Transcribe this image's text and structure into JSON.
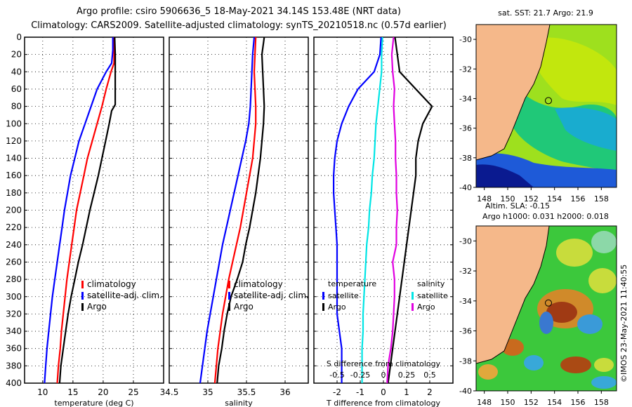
{
  "titles": {
    "line1": "Argo profile: csiro 5906636_5 18-May-2021 34.14S 153.48E (NRT data)",
    "line2": "Climatology: CARS2009. Satellite-adjusted climatology: synTS_20210518.nc (0.57d earlier)"
  },
  "colors": {
    "climatology": "#ff0000",
    "satellite": "#0000ff",
    "argo": "#000000",
    "t_satellite": "#0000ff",
    "s_satellite": "#00e5e5",
    "s_argo": "#e000e0",
    "land": "#f5b88a"
  },
  "depth_axis": {
    "ticks": [
      0,
      20,
      40,
      60,
      80,
      100,
      120,
      140,
      160,
      180,
      200,
      220,
      240,
      260,
      280,
      300,
      320,
      340,
      360,
      380,
      400
    ],
    "range": [
      0,
      400
    ]
  },
  "chart_data": [
    {
      "type": "line",
      "name": "temperature-profile",
      "xlabel": "temperature (deg C)",
      "xlim": [
        7,
        30
      ],
      "xticks": [
        10,
        15,
        20,
        25
      ],
      "legend": [
        "climatology",
        "satellite-adj. clim.",
        "Argo"
      ],
      "series": [
        {
          "name": "climatology",
          "color": "#ff0000",
          "points": [
            [
              21.8,
              0
            ],
            [
              21.8,
              20
            ],
            [
              21.8,
              30
            ],
            [
              21.3,
              40
            ],
            [
              20.5,
              60
            ],
            [
              19.8,
              80
            ],
            [
              19.0,
              100
            ],
            [
              18.2,
              120
            ],
            [
              17.4,
              140
            ],
            [
              16.8,
              160
            ],
            [
              16.2,
              180
            ],
            [
              15.6,
              200
            ],
            [
              15.2,
              220
            ],
            [
              14.8,
              240
            ],
            [
              14.4,
              260
            ],
            [
              14.0,
              280
            ],
            [
              13.7,
              300
            ],
            [
              13.4,
              320
            ],
            [
              13.1,
              340
            ],
            [
              12.9,
              360
            ],
            [
              12.6,
              380
            ],
            [
              12.4,
              400
            ]
          ]
        },
        {
          "name": "satellite-adj. clim.",
          "color": "#0000ff",
          "points": [
            [
              21.6,
              0
            ],
            [
              21.6,
              15
            ],
            [
              21.4,
              30
            ],
            [
              20.5,
              40
            ],
            [
              19.0,
              60
            ],
            [
              18.0,
              80
            ],
            [
              17.0,
              100
            ],
            [
              16.0,
              120
            ],
            [
              15.3,
              140
            ],
            [
              14.6,
              160
            ],
            [
              14.1,
              180
            ],
            [
              13.6,
              200
            ],
            [
              13.2,
              220
            ],
            [
              12.8,
              240
            ],
            [
              12.4,
              260
            ],
            [
              12.0,
              280
            ],
            [
              11.6,
              300
            ],
            [
              11.3,
              320
            ],
            [
              11.0,
              340
            ],
            [
              10.7,
              360
            ],
            [
              10.5,
              380
            ],
            [
              10.3,
              400
            ]
          ]
        },
        {
          "name": "Argo",
          "color": "#000000",
          "points": [
            [
              21.9,
              0
            ],
            [
              22.0,
              20
            ],
            [
              22.0,
              40
            ],
            [
              22.0,
              60
            ],
            [
              22.0,
              78
            ],
            [
              21.4,
              85
            ],
            [
              21.0,
              100
            ],
            [
              20.4,
              120
            ],
            [
              19.8,
              140
            ],
            [
              19.2,
              160
            ],
            [
              18.5,
              180
            ],
            [
              17.8,
              200
            ],
            [
              17.2,
              220
            ],
            [
              16.6,
              240
            ],
            [
              15.9,
              260
            ],
            [
              15.3,
              280
            ],
            [
              14.7,
              300
            ],
            [
              14.2,
              320
            ],
            [
              13.8,
              340
            ],
            [
              13.4,
              360
            ],
            [
              13.0,
              380
            ],
            [
              12.8,
              400
            ]
          ]
        }
      ]
    },
    {
      "type": "line",
      "name": "salinity-profile",
      "xlabel": "salinity",
      "xlim": [
        34.5,
        36.3
      ],
      "xticks": [
        34.5,
        35,
        35.5,
        36
      ],
      "xtick_labels": [
        "34.5",
        "35",
        "35.5",
        "36"
      ],
      "legend": [
        "climatology",
        "satellite-adj. clim.",
        "Argo"
      ],
      "series": [
        {
          "name": "climatology",
          "color": "#ff0000",
          "points": [
            [
              35.62,
              0
            ],
            [
              35.61,
              20
            ],
            [
              35.6,
              40
            ],
            [
              35.61,
              60
            ],
            [
              35.62,
              80
            ],
            [
              35.62,
              100
            ],
            [
              35.6,
              120
            ],
            [
              35.58,
              140
            ],
            [
              35.54,
              160
            ],
            [
              35.5,
              180
            ],
            [
              35.46,
              200
            ],
            [
              35.42,
              220
            ],
            [
              35.37,
              240
            ],
            [
              35.32,
              260
            ],
            [
              35.27,
              280
            ],
            [
              35.23,
              300
            ],
            [
              35.19,
              320
            ],
            [
              35.16,
              340
            ],
            [
              35.13,
              360
            ],
            [
              35.11,
              380
            ],
            [
              35.09,
              400
            ]
          ]
        },
        {
          "name": "satellite-adj. clim.",
          "color": "#0000ff",
          "points": [
            [
              35.6,
              0
            ],
            [
              35.58,
              20
            ],
            [
              35.57,
              40
            ],
            [
              35.56,
              60
            ],
            [
              35.55,
              80
            ],
            [
              35.53,
              100
            ],
            [
              35.49,
              120
            ],
            [
              35.44,
              140
            ],
            [
              35.39,
              160
            ],
            [
              35.34,
              180
            ],
            [
              35.29,
              200
            ],
            [
              35.24,
              220
            ],
            [
              35.19,
              240
            ],
            [
              35.15,
              260
            ],
            [
              35.11,
              280
            ],
            [
              35.07,
              300
            ],
            [
              35.03,
              320
            ],
            [
              34.99,
              340
            ],
            [
              34.96,
              360
            ],
            [
              34.93,
              380
            ],
            [
              34.9,
              400
            ]
          ]
        },
        {
          "name": "Argo",
          "color": "#000000",
          "points": [
            [
              35.73,
              0
            ],
            [
              35.7,
              20
            ],
            [
              35.71,
              40
            ],
            [
              35.72,
              60
            ],
            [
              35.73,
              80
            ],
            [
              35.72,
              100
            ],
            [
              35.7,
              120
            ],
            [
              35.68,
              140
            ],
            [
              35.65,
              160
            ],
            [
              35.62,
              180
            ],
            [
              35.58,
              200
            ],
            [
              35.54,
              220
            ],
            [
              35.49,
              240
            ],
            [
              35.45,
              260
            ],
            [
              35.38,
              280
            ],
            [
              35.3,
              300
            ],
            [
              35.25,
              320
            ],
            [
              35.21,
              340
            ],
            [
              35.18,
              360
            ],
            [
              35.14,
              380
            ],
            [
              35.12,
              400
            ]
          ]
        }
      ]
    },
    {
      "type": "line",
      "name": "difference-profile",
      "xlabel": "T difference from climatology",
      "x2label": "S difference from climatology",
      "xlim": [
        -3,
        3
      ],
      "xticks": [
        -2,
        -1,
        0,
        1,
        2
      ],
      "xtick_labels": [
        "-2",
        "-1",
        "0",
        "1",
        "2"
      ],
      "x2lim": [
        -0.75,
        0.75
      ],
      "x2ticks": [
        -0.5,
        -0.25,
        0,
        0.25,
        0.5
      ],
      "x2tick_labels": [
        "-0.5",
        "-0.25",
        "0",
        "0.25",
        "0.5"
      ],
      "legend_temperature": [
        "temperature",
        "satellite",
        "Argo"
      ],
      "legend_salinity": [
        "salinity",
        "satellite",
        "Argo"
      ],
      "series": [
        {
          "name": "T satellite",
          "axis": "T",
          "color": "#0000ff",
          "points": [
            [
              -0.1,
              0
            ],
            [
              -0.15,
              20
            ],
            [
              -0.4,
              40
            ],
            [
              -1.1,
              60
            ],
            [
              -1.5,
              80
            ],
            [
              -1.8,
              100
            ],
            [
              -2.0,
              120
            ],
            [
              -2.1,
              140
            ],
            [
              -2.15,
              160
            ],
            [
              -2.15,
              180
            ],
            [
              -2.1,
              200
            ],
            [
              -2.05,
              220
            ],
            [
              -2.0,
              240
            ],
            [
              -2.0,
              260
            ],
            [
              -2.0,
              280
            ],
            [
              -2.0,
              300
            ],
            [
              -2.0,
              320
            ],
            [
              -1.9,
              340
            ],
            [
              -1.8,
              360
            ],
            [
              -1.8,
              380
            ],
            [
              -1.8,
              400
            ]
          ]
        },
        {
          "name": "T Argo",
          "axis": "T",
          "color": "#000000",
          "points": [
            [
              0.5,
              0
            ],
            [
              0.6,
              20
            ],
            [
              0.7,
              40
            ],
            [
              1.4,
              60
            ],
            [
              2.1,
              80
            ],
            [
              1.7,
              100
            ],
            [
              1.5,
              120
            ],
            [
              1.4,
              140
            ],
            [
              1.4,
              160
            ],
            [
              1.3,
              180
            ],
            [
              1.2,
              200
            ],
            [
              1.1,
              220
            ],
            [
              1.0,
              240
            ],
            [
              0.9,
              260
            ],
            [
              0.8,
              280
            ],
            [
              0.7,
              300
            ],
            [
              0.6,
              320
            ],
            [
              0.5,
              340
            ],
            [
              0.4,
              360
            ],
            [
              0.3,
              380
            ],
            [
              0.2,
              400
            ]
          ]
        },
        {
          "name": "S satellite",
          "axis": "S",
          "color": "#00e5e5",
          "points": [
            [
              -0.01,
              0
            ],
            [
              -0.02,
              20
            ],
            [
              -0.02,
              40
            ],
            [
              -0.04,
              60
            ],
            [
              -0.06,
              80
            ],
            [
              -0.08,
              100
            ],
            [
              -0.09,
              120
            ],
            [
              -0.1,
              140
            ],
            [
              -0.12,
              160
            ],
            [
              -0.13,
              180
            ],
            [
              -0.15,
              200
            ],
            [
              -0.16,
              220
            ],
            [
              -0.18,
              240
            ],
            [
              -0.19,
              260
            ],
            [
              -0.2,
              280
            ],
            [
              -0.21,
              300
            ],
            [
              -0.22,
              320
            ],
            [
              -0.22,
              340
            ],
            [
              -0.23,
              360
            ],
            [
              -0.23,
              380
            ],
            [
              -0.23,
              400
            ]
          ]
        },
        {
          "name": "S Argo",
          "axis": "S",
          "color": "#e000e0",
          "points": [
            [
              0.11,
              0
            ],
            [
              0.09,
              20
            ],
            [
              0.1,
              40
            ],
            [
              0.12,
              60
            ],
            [
              0.11,
              80
            ],
            [
              0.12,
              100
            ],
            [
              0.13,
              120
            ],
            [
              0.13,
              140
            ],
            [
              0.14,
              160
            ],
            [
              0.14,
              180
            ],
            [
              0.15,
              200
            ],
            [
              0.14,
              220
            ],
            [
              0.14,
              240
            ],
            [
              0.1,
              260
            ],
            [
              0.12,
              280
            ],
            [
              0.12,
              300
            ],
            [
              0.11,
              320
            ],
            [
              0.1,
              340
            ],
            [
              0.08,
              360
            ],
            [
              0.05,
              380
            ],
            [
              0.04,
              400
            ]
          ]
        }
      ]
    }
  ],
  "maps": [
    {
      "name": "sst-map",
      "title": "sat. SST: 21.7 Argo: 21.9",
      "lat_ticks": [
        "-30",
        "-32",
        "-34",
        "-36",
        "-38",
        "-40"
      ],
      "lon_ticks": [
        "148",
        "150",
        "152",
        "154",
        "156",
        "158"
      ],
      "type": "sst"
    },
    {
      "name": "sla-map",
      "title_line1": "Altim. SLA: -0.15",
      "title_line2": "Argo h1000: 0.031 h2000: 0.018",
      "lat_ticks": [
        "-30",
        "-32",
        "-34",
        "-36",
        "-38",
        "-40"
      ],
      "lon_ticks": [
        "148",
        "150",
        "152",
        "154",
        "156",
        "158"
      ],
      "type": "sla"
    }
  ],
  "profile_location": {
    "lat": -34.14,
    "lon": 153.48
  },
  "credit": "©IMOS 23-May-2021 11:40:55"
}
